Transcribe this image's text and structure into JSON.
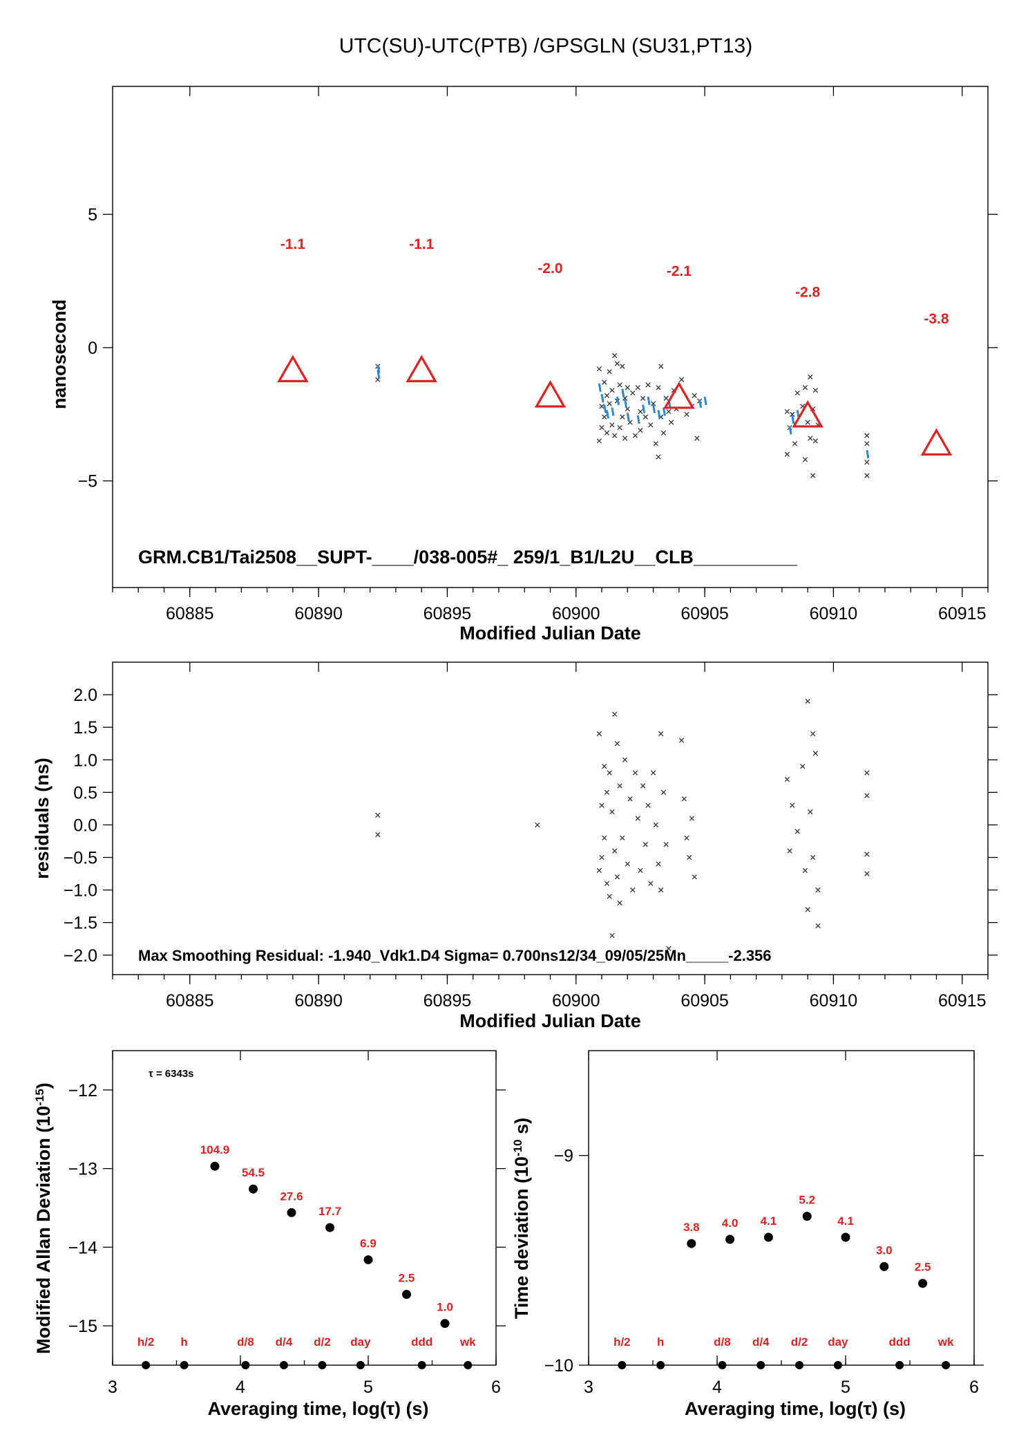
{
  "title": "UTC(SU)-UTC(PTB)  /GPSGLN  (SU31,PT13)",
  "colors": {
    "red": "#e32020",
    "blue": "#2a88d8",
    "black": "#000000"
  },
  "chart_data": [
    {
      "id": "main",
      "type": "scatter",
      "xlabel": "Modified Julian Date",
      "ylabel": "nanosecond",
      "xlim": [
        60882,
        60916
      ],
      "ylim": [
        -9,
        9.8
      ],
      "xticks": [
        60885,
        60890,
        60895,
        60900,
        60905,
        60910,
        60915
      ],
      "yticks": [
        5,
        0,
        -5
      ],
      "ytick_labels": [
        "5",
        "0",
        "−5"
      ],
      "annotation": "GRM.CB1/Tai2508__SUPT-____/038-005#_  259/1_B1/L2U__CLB__________",
      "triangles": {
        "x": [
          60889,
          60894,
          60899,
          60904,
          60909,
          60914
        ],
        "y": [
          -0.95,
          -0.95,
          -1.9,
          -1.95,
          -2.65,
          -3.7
        ],
        "labels": [
          "-1.1",
          "-1.1",
          "-2.0",
          "-2.1",
          "-2.8",
          "-3.8"
        ],
        "label_y": [
          3.7,
          3.7,
          2.8,
          2.7,
          1.9,
          0.9
        ]
      },
      "points_black": [
        [
          60892.3,
          -0.7
        ],
        [
          60892.3,
          -1.2
        ],
        [
          60900.9,
          -0.8
        ],
        [
          60900.9,
          -3.5
        ],
        [
          60901.0,
          -2.2
        ],
        [
          60901.0,
          -3.0
        ],
        [
          60901.1,
          -1.3
        ],
        [
          60901.1,
          -2.6
        ],
        [
          60901.2,
          -1.8
        ],
        [
          60901.2,
          -3.2
        ],
        [
          60901.3,
          -0.9
        ],
        [
          60901.3,
          -2.1
        ],
        [
          60901.4,
          -2.9
        ],
        [
          60901.4,
          -1.6
        ],
        [
          60901.5,
          -0.3
        ],
        [
          60901.5,
          -3.3
        ],
        [
          60901.6,
          -0.6
        ],
        [
          60901.6,
          -2.0
        ],
        [
          60901.7,
          -1.4
        ],
        [
          60901.7,
          -3.0
        ],
        [
          60901.8,
          -2.6
        ],
        [
          60901.8,
          -0.7
        ],
        [
          60901.9,
          -1.9
        ],
        [
          60901.9,
          -3.4
        ],
        [
          60902.0,
          -2.3
        ],
        [
          60902.0,
          -1.5
        ],
        [
          60902.1,
          -2.8
        ],
        [
          60902.2,
          -1.7
        ],
        [
          60902.3,
          -3.3
        ],
        [
          60902.4,
          -1.5
        ],
        [
          60902.5,
          -2.4
        ],
        [
          60902.5,
          -3.1
        ],
        [
          60902.6,
          -1.9
        ],
        [
          60902.7,
          -2.6
        ],
        [
          60902.8,
          -1.4
        ],
        [
          60902.9,
          -2.9
        ],
        [
          60903.0,
          -2.1
        ],
        [
          60903.1,
          -3.6
        ],
        [
          60903.2,
          -1.5
        ],
        [
          60903.2,
          -4.1
        ],
        [
          60903.3,
          -2.6
        ],
        [
          60903.3,
          -0.7
        ],
        [
          60903.4,
          -3.2
        ],
        [
          60903.5,
          -1.9
        ],
        [
          60903.6,
          -2.4
        ],
        [
          60903.7,
          -2.8
        ],
        [
          60903.8,
          -1.6
        ],
        [
          60903.9,
          -2.3
        ],
        [
          60904.1,
          -1.2
        ],
        [
          60904.3,
          -2.5
        ],
        [
          60904.5,
          -2.2
        ],
        [
          60904.6,
          -1.8
        ],
        [
          60904.7,
          -3.4
        ],
        [
          60904.8,
          -2.0
        ],
        [
          60908.2,
          -2.4
        ],
        [
          60908.2,
          -4.0
        ],
        [
          60908.3,
          -3.0
        ],
        [
          60908.4,
          -2.5
        ],
        [
          60908.5,
          -3.6
        ],
        [
          60908.6,
          -1.7
        ],
        [
          60908.8,
          -2.2
        ],
        [
          60908.9,
          -1.5
        ],
        [
          60908.9,
          -4.2
        ],
        [
          60909.0,
          -2.8
        ],
        [
          60909.1,
          -3.4
        ],
        [
          60909.1,
          -1.1
        ],
        [
          60909.2,
          -2.3
        ],
        [
          60909.2,
          -4.8
        ],
        [
          60909.3,
          -3.5
        ],
        [
          60909.3,
          -1.6
        ],
        [
          60909.4,
          -2.9
        ],
        [
          60911.3,
          -3.3
        ],
        [
          60911.3,
          -3.6
        ],
        [
          60911.3,
          -4.3
        ],
        [
          60911.3,
          -4.8
        ]
      ],
      "points_blue": [
        [
          60892.3,
          -0.8
        ],
        [
          60892.3,
          -1.0
        ],
        [
          60900.9,
          -1.5
        ],
        [
          60901.0,
          -1.9
        ],
        [
          60901.1,
          -2.3
        ],
        [
          60901.2,
          -2.5
        ],
        [
          60901.4,
          -2.4
        ],
        [
          60901.6,
          -2.0
        ],
        [
          60901.8,
          -1.7
        ],
        [
          60901.9,
          -2.1
        ],
        [
          60902.0,
          -2.6
        ],
        [
          60902.4,
          -2.7
        ],
        [
          60902.6,
          -2.3
        ],
        [
          60902.8,
          -2.0
        ],
        [
          60903.0,
          -2.3
        ],
        [
          60903.2,
          -2.5
        ],
        [
          60903.4,
          -2.4
        ],
        [
          60903.6,
          -2.1
        ],
        [
          60904.8,
          -2.1
        ],
        [
          60905.0,
          -2.0
        ],
        [
          60908.3,
          -3.1
        ],
        [
          60908.4,
          -2.7
        ],
        [
          60908.6,
          -2.5
        ],
        [
          60911.3,
          -4.0
        ]
      ]
    },
    {
      "id": "residuals",
      "type": "scatter",
      "xlabel": "Modified Julian Date",
      "ylabel": "residuals (ns)",
      "xlim": [
        60882,
        60916
      ],
      "ylim": [
        -2.3,
        2.5
      ],
      "xticks": [
        60885,
        60890,
        60895,
        60900,
        60905,
        60910,
        60915
      ],
      "yticks": [
        2.0,
        1.5,
        1.0,
        0.5,
        0.0,
        -0.5,
        -1.0,
        -1.5,
        -2.0
      ],
      "ytick_labels": [
        "2.0",
        "1.5",
        "1.0",
        "0.5",
        "0.0",
        "−0.5",
        "−1.0",
        "−1.5",
        "−2.0"
      ],
      "annotation": "Max Smoothing Residual: -1.940_Vdk1.D4  Sigma= 0.700ns12/34_09/05/25Mn_____-2.356",
      "points": [
        [
          60892.3,
          0.15
        ],
        [
          60892.3,
          -0.15
        ],
        [
          60898.5,
          0.0
        ],
        [
          60900.9,
          1.4
        ],
        [
          60900.9,
          -0.7
        ],
        [
          60901.0,
          0.3
        ],
        [
          60901.0,
          -0.5
        ],
        [
          60901.1,
          0.9
        ],
        [
          60901.1,
          -0.2
        ],
        [
          60901.2,
          -0.9
        ],
        [
          60901.2,
          0.5
        ],
        [
          60901.3,
          0.8
        ],
        [
          60901.3,
          -1.1
        ],
        [
          60901.4,
          -1.7
        ],
        [
          60901.4,
          0.2
        ],
        [
          60901.5,
          1.7
        ],
        [
          60901.5,
          -0.4
        ],
        [
          60901.6,
          1.25
        ],
        [
          60901.6,
          -0.8
        ],
        [
          60901.7,
          0.6
        ],
        [
          60901.7,
          -1.2
        ],
        [
          60901.8,
          -0.2
        ],
        [
          60901.9,
          1.0
        ],
        [
          60902.0,
          -0.6
        ],
        [
          60902.1,
          0.4
        ],
        [
          60902.2,
          -1.0
        ],
        [
          60902.3,
          0.8
        ],
        [
          60902.4,
          0.1
        ],
        [
          60902.5,
          -0.7
        ],
        [
          60902.6,
          0.6
        ],
        [
          60902.7,
          -0.3
        ],
        [
          60902.8,
          0.3
        ],
        [
          60902.9,
          -0.9
        ],
        [
          60903.0,
          0.8
        ],
        [
          60903.1,
          0.0
        ],
        [
          60903.2,
          -0.6
        ],
        [
          60903.3,
          1.4
        ],
        [
          60903.3,
          -1.0
        ],
        [
          60903.4,
          0.5
        ],
        [
          60903.5,
          -0.3
        ],
        [
          60903.6,
          -1.9
        ],
        [
          60904.1,
          1.3
        ],
        [
          60904.2,
          0.4
        ],
        [
          60904.3,
          -0.2
        ],
        [
          60904.4,
          -0.5
        ],
        [
          60904.5,
          0.1
        ],
        [
          60904.6,
          -0.8
        ],
        [
          60908.2,
          0.7
        ],
        [
          60908.3,
          -0.4
        ],
        [
          60908.4,
          0.3
        ],
        [
          60908.6,
          -0.1
        ],
        [
          60908.8,
          0.9
        ],
        [
          60908.9,
          -0.7
        ],
        [
          60909.0,
          1.9
        ],
        [
          60909.0,
          -1.3
        ],
        [
          60909.1,
          0.2
        ],
        [
          60909.2,
          1.4
        ],
        [
          60909.2,
          -0.5
        ],
        [
          60909.3,
          1.1
        ],
        [
          60909.4,
          -1.0
        ],
        [
          60909.4,
          -1.55
        ],
        [
          60911.3,
          0.8
        ],
        [
          60911.3,
          0.45
        ],
        [
          60911.3,
          -0.45
        ],
        [
          60911.3,
          -0.75
        ]
      ]
    },
    {
      "id": "mdev",
      "type": "scatter",
      "xlabel": "Averaging time, log(τ) (s)",
      "ylabel": "Modified Allan Deviation (10^-15)",
      "xlim": [
        3,
        6
      ],
      "ylim": [
        -15.5,
        -11.5
      ],
      "xticks": [
        3,
        4,
        5,
        6
      ],
      "yticks": [
        -12,
        -13,
        -14,
        -15
      ],
      "ytick_labels": [
        "−12",
        "−13",
        "−14",
        "−15"
      ],
      "tau_note": "τ = 6343s",
      "x": [
        3.8,
        4.1,
        4.4,
        4.7,
        5.0,
        5.3,
        5.6
      ],
      "y": [
        -12.97,
        -13.26,
        -13.56,
        -13.75,
        -14.16,
        -14.6,
        -14.97
      ],
      "labels": [
        "104.9",
        "54.5",
        "27.6",
        "17.7",
        "6.9",
        "2.5",
        "1.0"
      ],
      "ref_x": [
        3.26,
        3.56,
        4.04,
        4.34,
        4.64,
        4.94,
        5.42,
        5.78
      ],
      "ref_labels": [
        "h/2",
        "h",
        "d/8",
        "d/4",
        "d/2",
        "day",
        "ddd",
        "wk"
      ]
    },
    {
      "id": "tdev",
      "type": "scatter",
      "xlabel": "Averaging time, log(τ) (s)",
      "ylabel": "Time deviation (10^-10 s)",
      "xlim": [
        3,
        6
      ],
      "ylim": [
        -10,
        -8.5
      ],
      "xticks": [
        3,
        4,
        5,
        6
      ],
      "yticks": [
        -9,
        -10
      ],
      "ytick_labels": [
        "−9",
        "−10"
      ],
      "x": [
        3.8,
        4.1,
        4.4,
        4.7,
        5.0,
        5.3,
        5.6
      ],
      "y": [
        -9.42,
        -9.4,
        -9.39,
        -9.29,
        -9.39,
        -9.53,
        -9.61
      ],
      "labels": [
        "3.8",
        "4.0",
        "4.1",
        "5.2",
        "4.1",
        "3.0",
        "2.5"
      ],
      "ref_x": [
        3.26,
        3.56,
        4.04,
        4.34,
        4.64,
        4.94,
        5.42,
        5.78
      ],
      "ref_labels": [
        "h/2",
        "h",
        "d/8",
        "d/4",
        "d/2",
        "day",
        "ddd",
        "wk"
      ]
    }
  ]
}
